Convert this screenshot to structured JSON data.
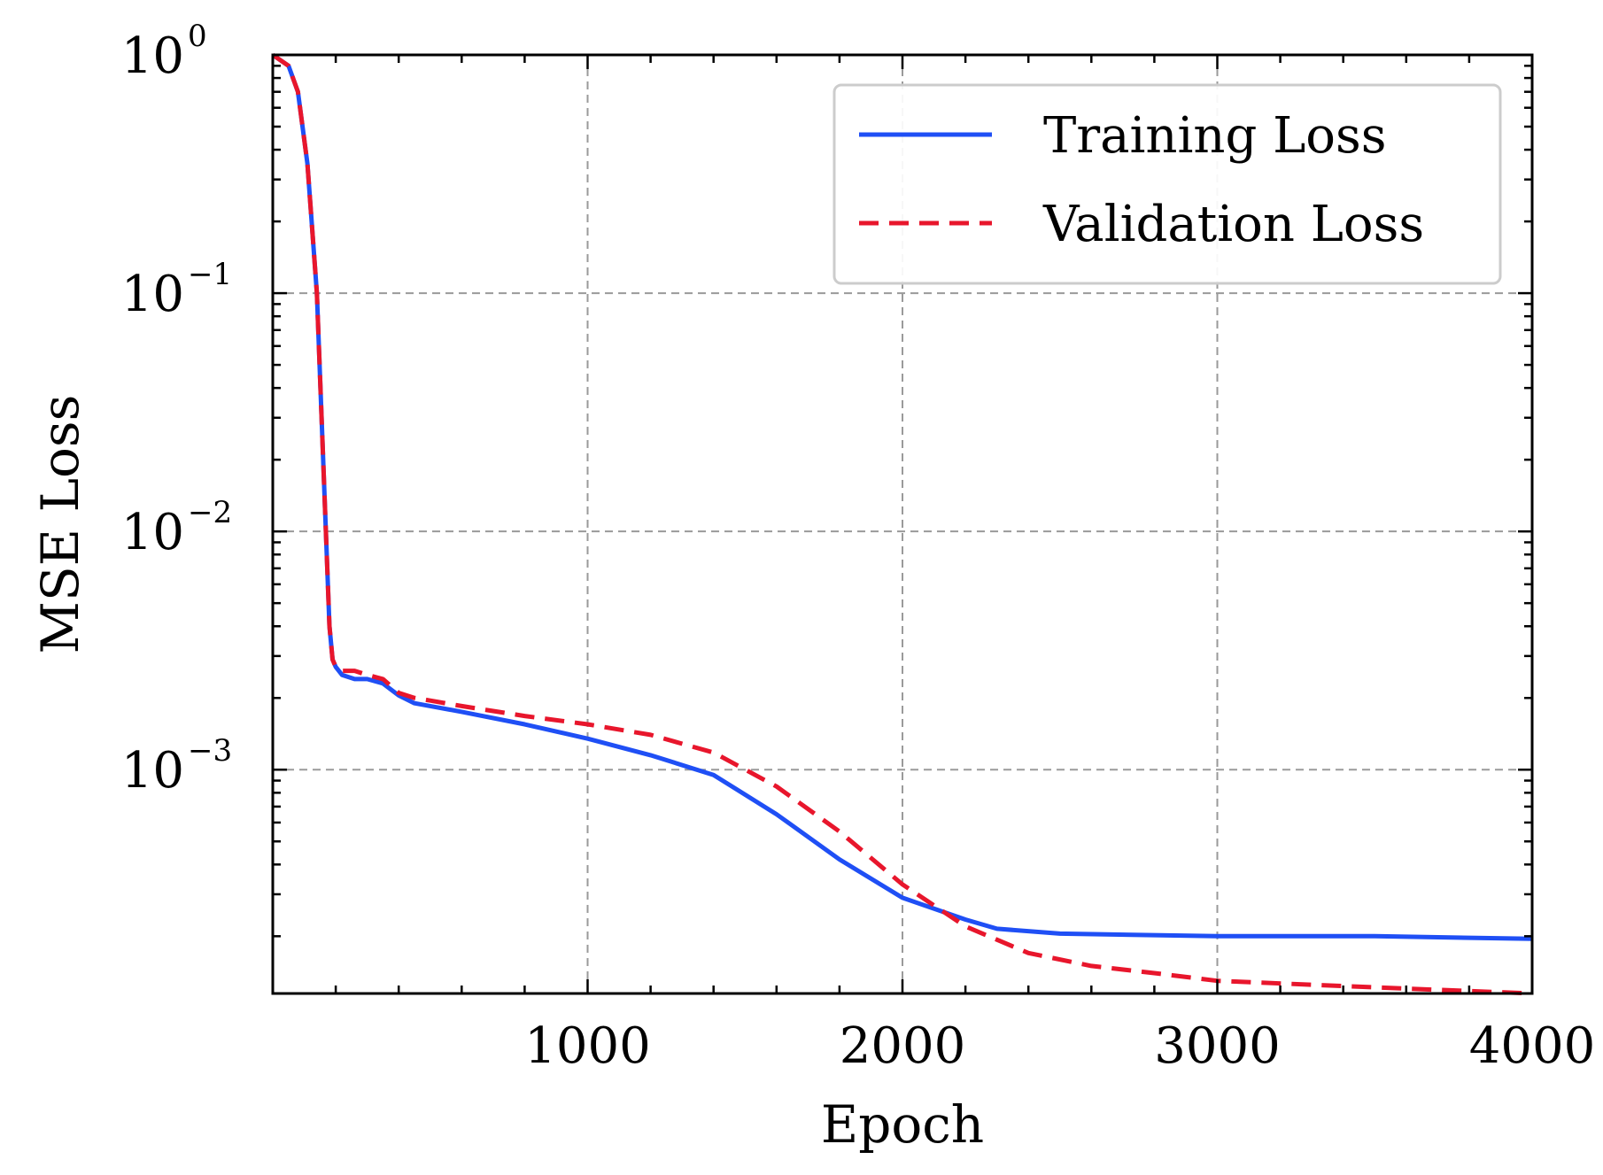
{
  "chart_data": {
    "type": "line",
    "xlabel": "Epoch",
    "ylabel": "MSE Loss",
    "xlim": [
      0,
      4000
    ],
    "ylim": [
      0.000115,
      1.0
    ],
    "yscale": "log",
    "grid": true,
    "legend_position": "top-right",
    "x_ticks": [
      {
        "value": 1000,
        "label": "1000"
      },
      {
        "value": 2000,
        "label": "2000"
      },
      {
        "value": 3000,
        "label": "3000"
      },
      {
        "value": 4000,
        "label": "4000"
      }
    ],
    "y_ticks": [
      {
        "value": 1,
        "base": "10",
        "exp": "0"
      },
      {
        "value": 0.1,
        "base": "10",
        "exp": "−1"
      },
      {
        "value": 0.01,
        "base": "10",
        "exp": "−2"
      },
      {
        "value": 0.001,
        "base": "10",
        "exp": "−3"
      }
    ],
    "series": [
      {
        "name": "Training Loss",
        "color": "#1f4ff5",
        "style": "solid",
        "x": [
          0,
          50,
          80,
          110,
          140,
          160,
          180,
          190,
          200,
          220,
          260,
          300,
          350,
          400,
          450,
          500,
          600,
          800,
          1000,
          1200,
          1400,
          1600,
          1800,
          2000,
          2200,
          2300,
          2500,
          3000,
          3500,
          4000
        ],
        "y": [
          1.0,
          0.9,
          0.7,
          0.35,
          0.1,
          0.02,
          0.004,
          0.0029,
          0.0027,
          0.0025,
          0.0024,
          0.0024,
          0.0023,
          0.00205,
          0.0019,
          0.00185,
          0.00175,
          0.00155,
          0.00135,
          0.00115,
          0.00095,
          0.00065,
          0.00042,
          0.00029,
          0.000235,
          0.000215,
          0.000205,
          0.0002,
          0.0002,
          0.000195
        ]
      },
      {
        "name": "Validation Loss",
        "color": "#e8162c",
        "style": "dashed",
        "x": [
          0,
          50,
          80,
          110,
          140,
          160,
          180,
          190,
          200,
          220,
          260,
          300,
          350,
          400,
          450,
          500,
          600,
          800,
          1000,
          1200,
          1400,
          1600,
          1800,
          2000,
          2200,
          2400,
          2600,
          2800,
          3000,
          3500,
          4000
        ],
        "y": [
          1.0,
          0.9,
          0.7,
          0.35,
          0.1,
          0.02,
          0.004,
          0.0029,
          0.0027,
          0.0026,
          0.0026,
          0.0025,
          0.0024,
          0.0021,
          0.002,
          0.00195,
          0.00185,
          0.00168,
          0.00155,
          0.0014,
          0.00118,
          0.00085,
          0.00055,
          0.00033,
          0.00022,
          0.00017,
          0.00015,
          0.00014,
          0.00013,
          0.000122,
          0.000115
        ]
      }
    ]
  }
}
